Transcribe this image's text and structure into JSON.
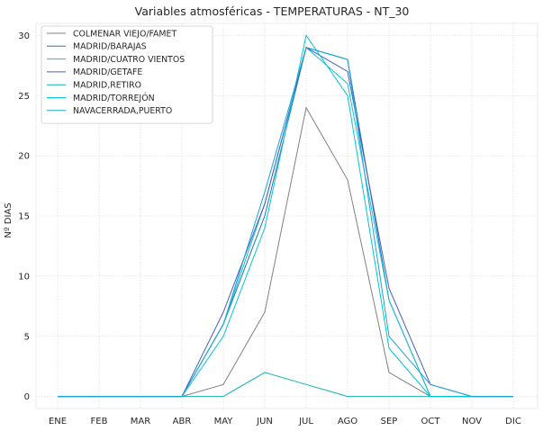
{
  "chart_data": {
    "type": "line",
    "title": "Variables atmosféricas - TEMPERATURAS - NT_30",
    "xlabel": "",
    "ylabel": "Nº DIAS",
    "categories": [
      "ENE",
      "FEB",
      "MAR",
      "ABR",
      "MAY",
      "JUN",
      "JUL",
      "AGO",
      "SEP",
      "OCT",
      "NOV",
      "DIC"
    ],
    "ylim": [
      -1,
      31
    ],
    "yticks": [
      0,
      5,
      10,
      15,
      20,
      25,
      30
    ],
    "grid": true,
    "legend_position": "top-left",
    "series": [
      {
        "name": "COLMENAR VIEJO/FAMET",
        "color": "#808080",
        "values": [
          0,
          0,
          0,
          0,
          1,
          7,
          24,
          18,
          2,
          0,
          0,
          0
        ]
      },
      {
        "name": "MADRID/BARAJAS",
        "color": "#1f77b4",
        "values": [
          0,
          0,
          0,
          0,
          6,
          15,
          29,
          28,
          8,
          0,
          0,
          0
        ]
      },
      {
        "name": "MADRID/CUATRO VIENTOS",
        "color": "#17becf",
        "values": [
          0,
          0,
          0,
          0,
          6,
          16,
          29,
          26,
          8,
          0,
          0,
          0
        ]
      },
      {
        "name": "MADRID/GETAFE",
        "color": "#4a5cc2",
        "values": [
          0,
          0,
          0,
          0,
          7,
          16,
          29,
          27,
          9,
          1,
          0,
          0
        ]
      },
      {
        "name": "MADRID,RETIRO",
        "color": "#14b0b0",
        "values": [
          0,
          0,
          0,
          0,
          0,
          2,
          1,
          0,
          0,
          0,
          0,
          0
        ]
      },
      {
        "name": "MADRID/TORREJÓN",
        "color": "#00c5d6",
        "values": [
          0,
          0,
          0,
          0,
          5,
          14,
          30,
          25,
          4,
          0,
          0,
          0
        ]
      },
      {
        "name": "NAVACERRADA,PUERTO",
        "color": "#1ba3d4",
        "values": [
          0,
          0,
          0,
          0,
          6,
          17,
          29,
          28,
          5,
          1,
          0,
          0
        ]
      }
    ]
  }
}
